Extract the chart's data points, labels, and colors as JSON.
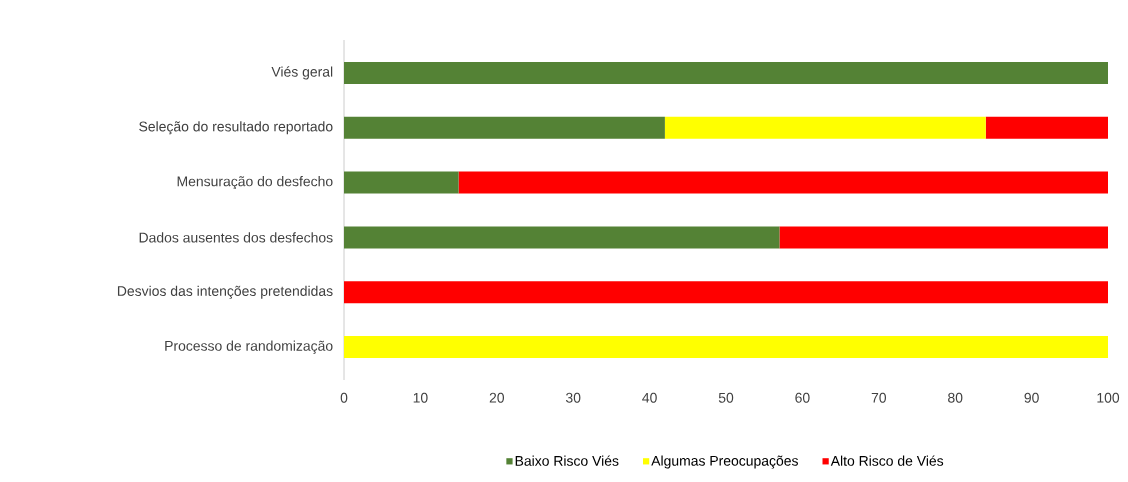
{
  "chart_data": {
    "type": "bar",
    "orientation": "horizontal",
    "stacked": true,
    "categories": [
      "Viés geral",
      "Seleção do resultado reportado",
      "Mensuração do desfecho",
      "Dados ausentes dos desfechos",
      "Desvios das intenções pretendidas",
      "Processo de randomização"
    ],
    "series": [
      {
        "name": "Baixo Risco Viés",
        "color": "#548235",
        "values": [
          100,
          42,
          15,
          57,
          0,
          0
        ]
      },
      {
        "name": "Algumas Preocupações",
        "color": "#ffff00",
        "values": [
          0,
          42,
          0,
          0,
          0,
          100
        ]
      },
      {
        "name": "Alto Risco de Viés",
        "color": "#ff0000",
        "values": [
          0,
          16,
          85,
          43,
          100,
          0
        ]
      }
    ],
    "xlim": [
      0,
      100
    ],
    "xticks": [
      0,
      10,
      20,
      30,
      40,
      50,
      60,
      70,
      80,
      90,
      100
    ],
    "legend": "bottom"
  }
}
